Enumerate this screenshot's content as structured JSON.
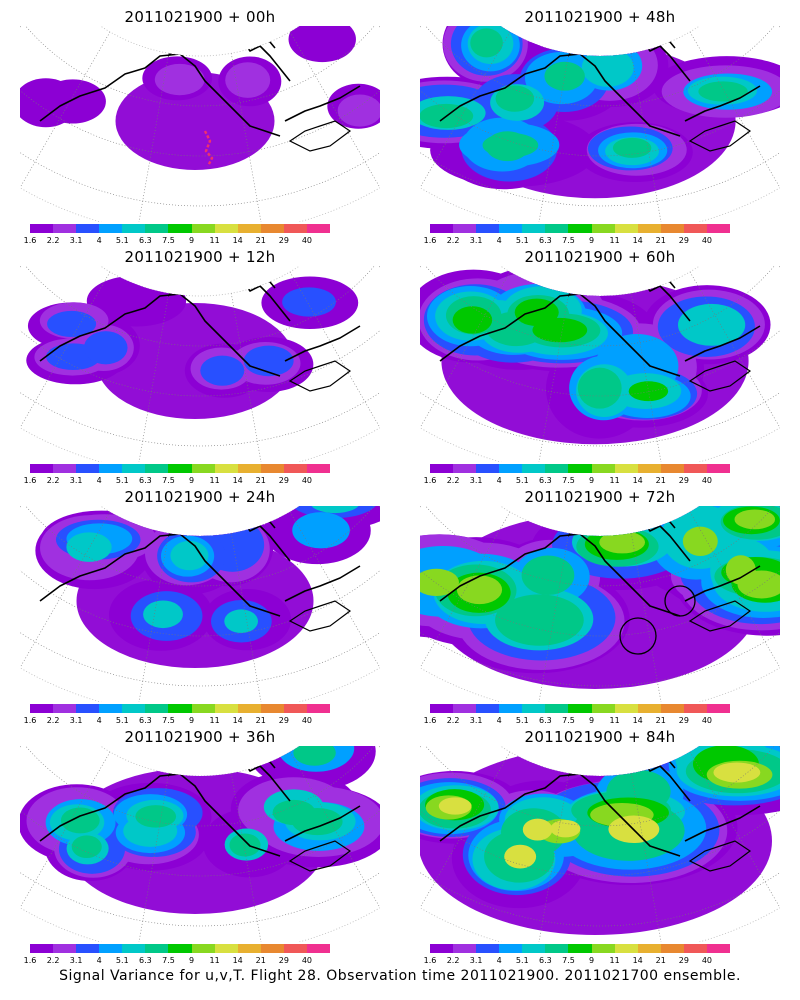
{
  "panels": [
    {
      "title": "2011021900 + 00h",
      "lead_hours": 0,
      "intensity": 0.15,
      "track_marker": true,
      "circles": 0
    },
    {
      "title": "2011021900 + 12h",
      "lead_hours": 12,
      "intensity": 0.3,
      "track_marker": false,
      "circles": 0
    },
    {
      "title": "2011021900 + 24h",
      "lead_hours": 24,
      "intensity": 0.45,
      "track_marker": false,
      "circles": 0
    },
    {
      "title": "2011021900 + 36h",
      "lead_hours": 36,
      "intensity": 0.55,
      "track_marker": false,
      "circles": 0
    },
    {
      "title": "2011021900 + 48h",
      "lead_hours": 48,
      "intensity": 0.62,
      "track_marker": false,
      "circles": 0
    },
    {
      "title": "2011021900 + 60h",
      "lead_hours": 60,
      "intensity": 0.72,
      "track_marker": false,
      "circles": 0
    },
    {
      "title": "2011021900 + 72h",
      "lead_hours": 72,
      "intensity": 0.8,
      "track_marker": false,
      "circles": 2
    },
    {
      "title": "2011021900 + 84h",
      "lead_hours": 84,
      "intensity": 0.9,
      "track_marker": false,
      "circles": 0
    }
  ],
  "colorbar": {
    "levels": [
      "1.6",
      "2.2",
      "3.1",
      "4",
      "5.1",
      "6.3",
      "7.5",
      "9",
      "11",
      "14",
      "21",
      "29",
      "40"
    ],
    "colors": [
      "#8c00d4",
      "#a030e0",
      "#2850ff",
      "#00a0ff",
      "#00c8c8",
      "#00c888",
      "#00c800",
      "#88d820",
      "#d8e040",
      "#e8b030",
      "#e88830",
      "#f05858",
      "#f03090"
    ]
  },
  "caption": "Signal Variance for u,v,T. Flight 28. Observation time 2011021900. 2011021700 ensemble."
}
